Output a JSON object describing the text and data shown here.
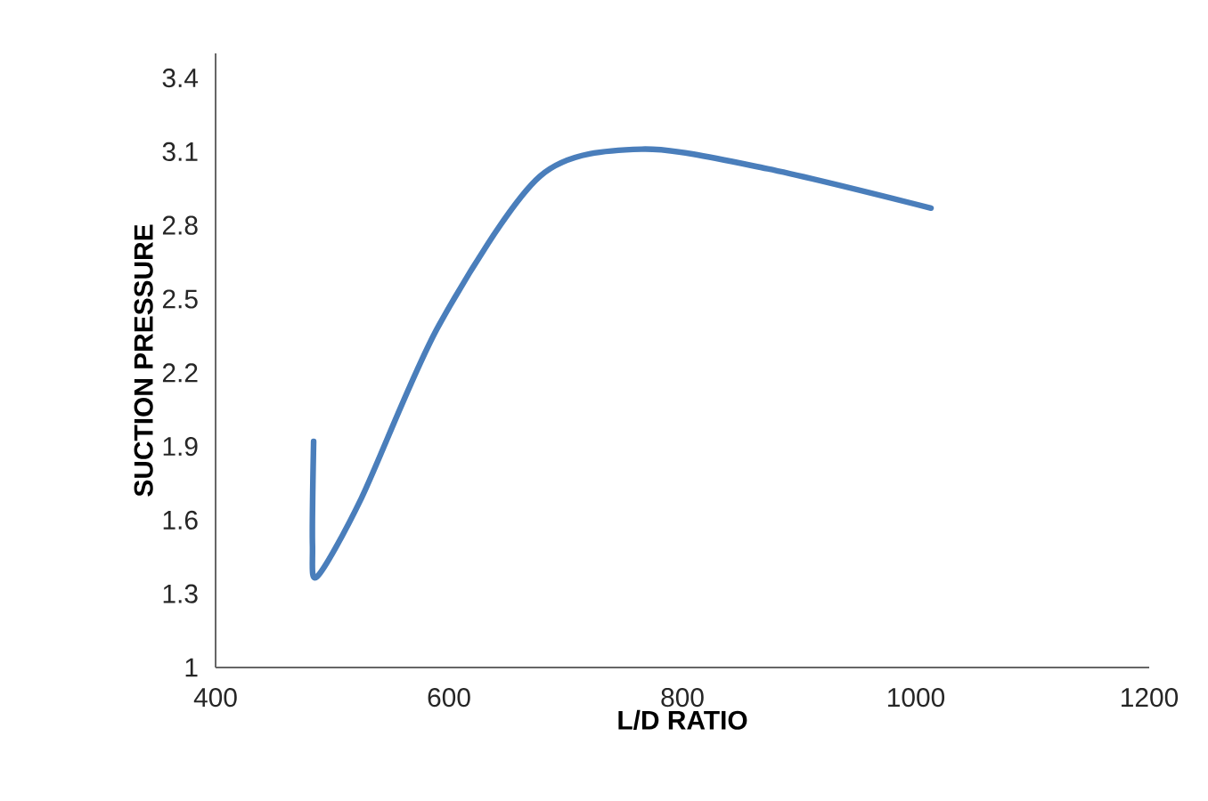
{
  "chart_data": {
    "type": "line",
    "xlabel": "L/D RATIO",
    "ylabel": "SUCTION PRESSURE",
    "x": [
      484,
      483,
      487,
      525,
      591,
      678,
      765,
      873,
      1013
    ],
    "series": [
      {
        "color": "#4a7ebb",
        "values": [
          1.92,
          1.5,
          1.37,
          1.69,
          2.39,
          3.0,
          3.11,
          3.03,
          2.87
        ]
      }
    ],
    "xlim": [
      400,
      1200
    ],
    "ylim": [
      1,
      3.5
    ],
    "xticks": [
      400,
      600,
      800,
      1000,
      1200
    ],
    "yticks": [
      1,
      1.3,
      1.6,
      1.9,
      2.2,
      2.5,
      2.8,
      3.1,
      3.4
    ],
    "grid": false,
    "marker": "none",
    "line_style": "solid"
  }
}
